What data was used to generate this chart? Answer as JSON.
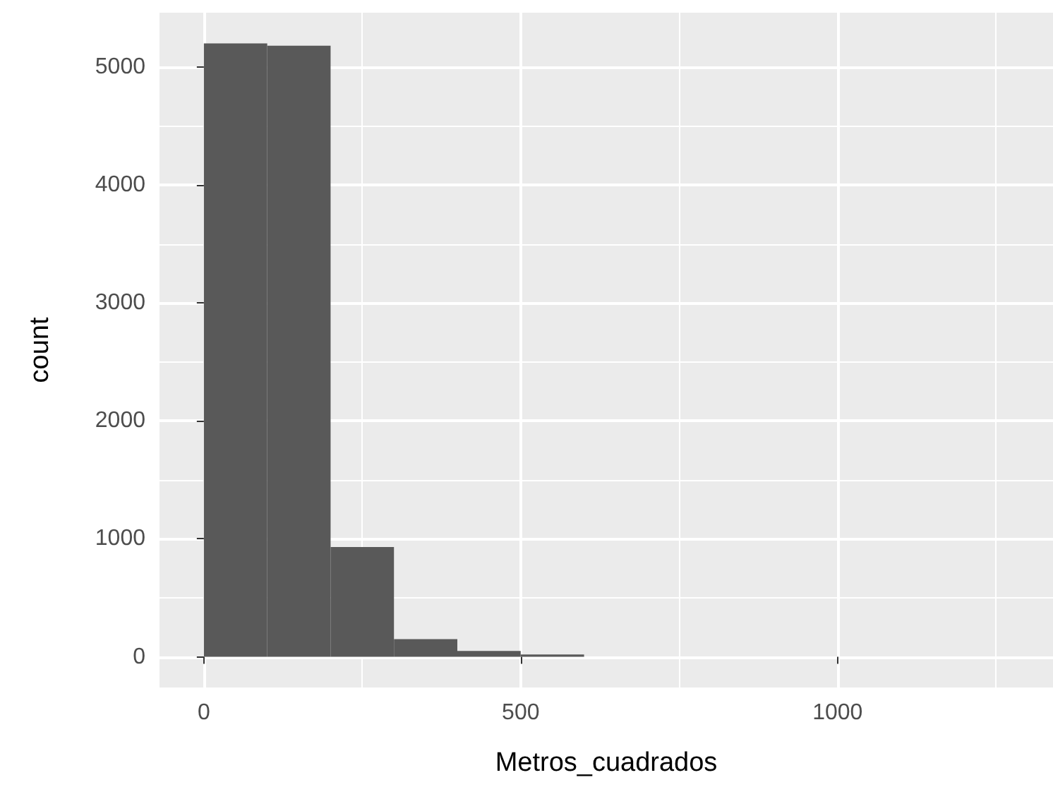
{
  "chart_data": {
    "type": "histogram",
    "xlabel": "Metros_cuadrados",
    "ylabel": "count",
    "bins": [
      0,
      100,
      200,
      300,
      400,
      500,
      600
    ],
    "values": [
      5200,
      5180,
      930,
      150,
      50,
      20
    ],
    "color": "#595959",
    "xlim": [
      -70,
      1340
    ],
    "xticks": [
      0,
      500,
      1000
    ],
    "ylim": [
      -260,
      5460
    ],
    "yticks": [
      0,
      1000,
      2000,
      3000,
      4000,
      5000
    ],
    "grid": true
  }
}
